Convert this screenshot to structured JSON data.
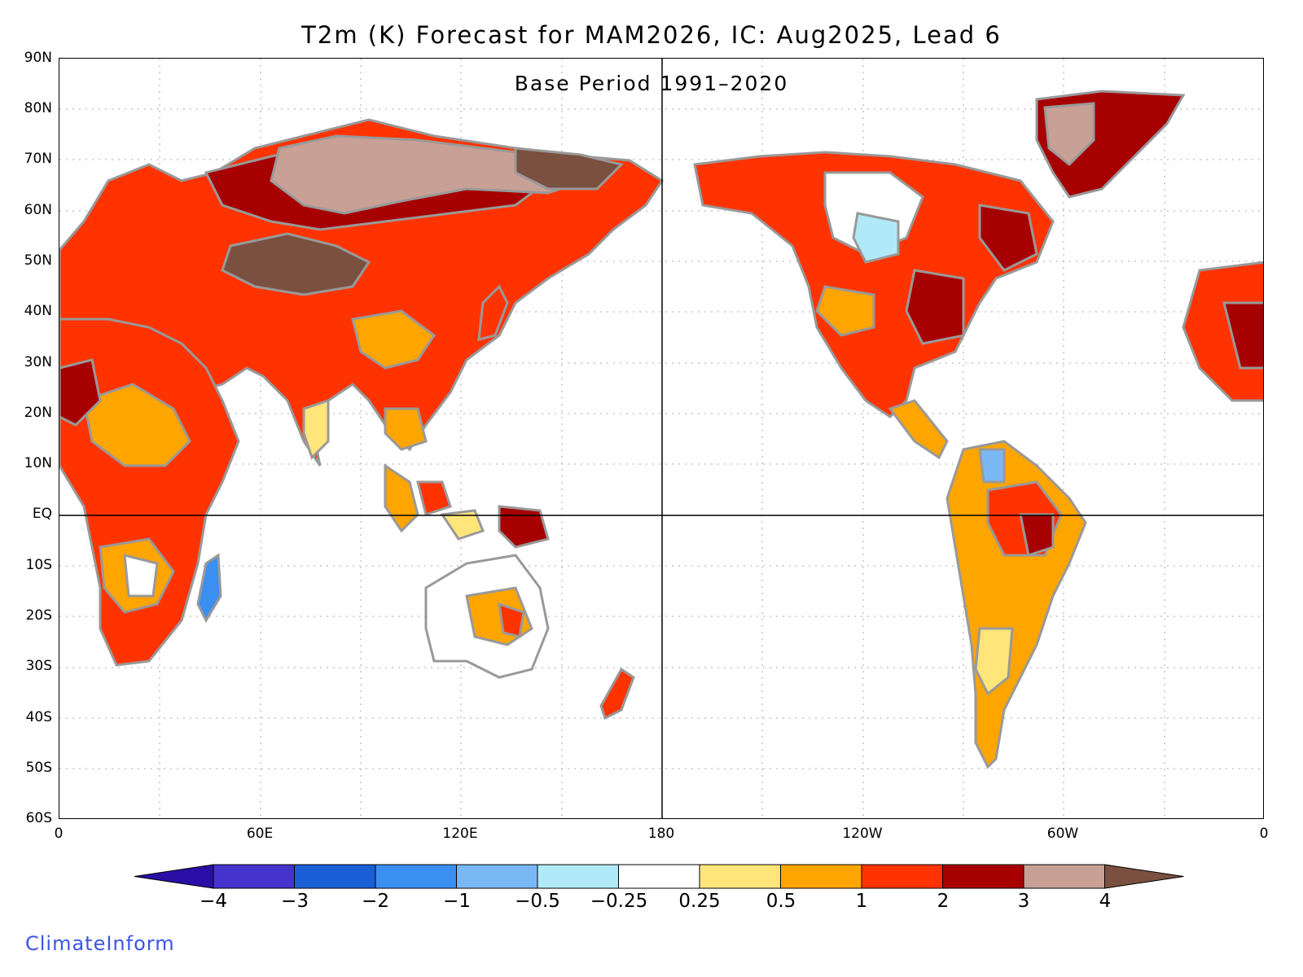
{
  "title": "T2m (K) Forecast for MAM2026, IC: Aug2025, Lead 6",
  "subtitle": "Base Period 1991–2020",
  "lat_labels": [
    "90N",
    "80N",
    "70N",
    "60N",
    "50N",
    "40N",
    "30N",
    "20N",
    "10N",
    "EQ",
    "10S",
    "20S",
    "30S",
    "40S",
    "50S",
    "60S"
  ],
  "lon_labels": [
    "0",
    "60E",
    "120E",
    "180",
    "120W",
    "60W",
    "0"
  ],
  "colorbar": {
    "labels": [
      "−4",
      "−3",
      "−2",
      "−1",
      "−0.5",
      "−0.25",
      "0.25",
      "0.5",
      "1",
      "2",
      "3",
      "4"
    ],
    "colors": [
      "#2a0fa6",
      "#4433cc",
      "#1a5fd6",
      "#3a8ff0",
      "#7ab8f5",
      "#b0eaf8",
      "#ffffff",
      "#ffe57a",
      "#ffa500",
      "#ff3300",
      "#a60000",
      "#c8a096",
      "#7a5040"
    ]
  },
  "brand": "ClimateInform"
}
